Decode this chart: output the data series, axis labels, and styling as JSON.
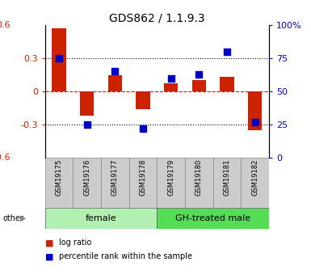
{
  "title": "GDS862 / 1.1.9.3",
  "samples": [
    "GSM19175",
    "GSM19176",
    "GSM19177",
    "GSM19178",
    "GSM19179",
    "GSM19180",
    "GSM19181",
    "GSM19182"
  ],
  "log_ratio": [
    0.57,
    -0.22,
    0.15,
    -0.16,
    0.07,
    0.1,
    0.13,
    -0.35
  ],
  "percentile_rank": [
    75,
    25,
    65,
    22,
    60,
    63,
    80,
    27
  ],
  "groups": [
    {
      "label": "female",
      "start": 0,
      "end": 4,
      "color": "#b2f0b2"
    },
    {
      "label": "GH-treated male",
      "start": 4,
      "end": 8,
      "color": "#55dd55"
    }
  ],
  "bar_color": "#cc2200",
  "dot_color": "#0000cc",
  "ylim_left": [
    -0.6,
    0.6
  ],
  "ylim_right": [
    0,
    100
  ],
  "yticks_left": [
    -0.3,
    0.0,
    0.3
  ],
  "ytick_labels_right": [
    "0",
    "25",
    "50",
    "75",
    "100%"
  ],
  "hlines_dotted": [
    -0.3,
    0.3
  ],
  "hline_red_dashed": 0.0,
  "bar_width": 0.5,
  "dot_size": 40,
  "title_fontsize": 10,
  "tick_fontsize": 8,
  "sample_label_fontsize": 6,
  "group_label_fontsize": 8,
  "legend_fontsize": 7
}
